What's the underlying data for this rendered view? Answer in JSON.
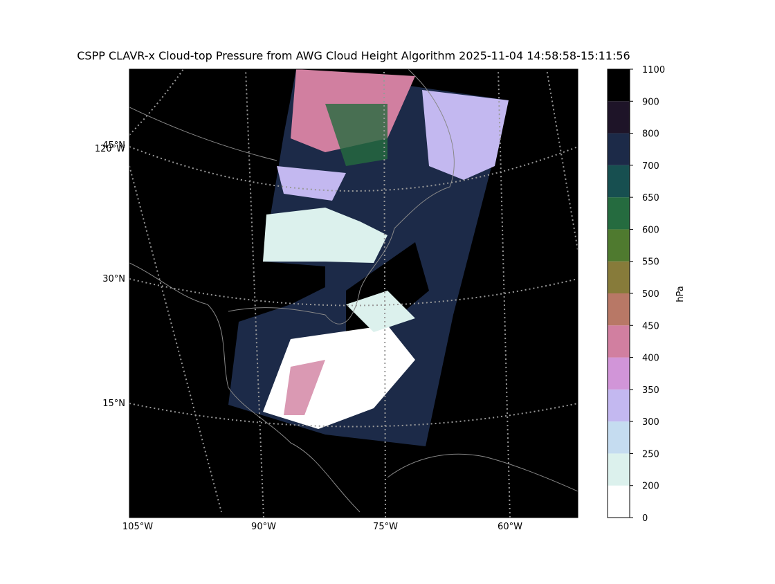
{
  "title": "CSPP CLAVR-x Cloud-top Pressure from AWG Cloud Height Algorithm 2025-11-04 14:58:58-15:11:56",
  "map": {
    "lon_labels": [
      "105°W",
      "90°W",
      "75°W",
      "60°W"
    ],
    "lat_labels": [
      "45°N",
      "120°W",
      "30°N",
      "15°N"
    ]
  },
  "colorbar": {
    "label": "hPa",
    "ticks": [
      0,
      200,
      250,
      300,
      350,
      400,
      450,
      500,
      550,
      600,
      650,
      700,
      800,
      900,
      1100
    ],
    "colors": [
      "#ffffff",
      "#dcf1ed",
      "#c5dcf0",
      "#c3b8f0",
      "#d195d8",
      "#d17fa0",
      "#b87866",
      "#877b3a",
      "#4f7a2f",
      "#256b3f",
      "#174f50",
      "#1c2a48",
      "#1e1428",
      "#000000"
    ]
  }
}
